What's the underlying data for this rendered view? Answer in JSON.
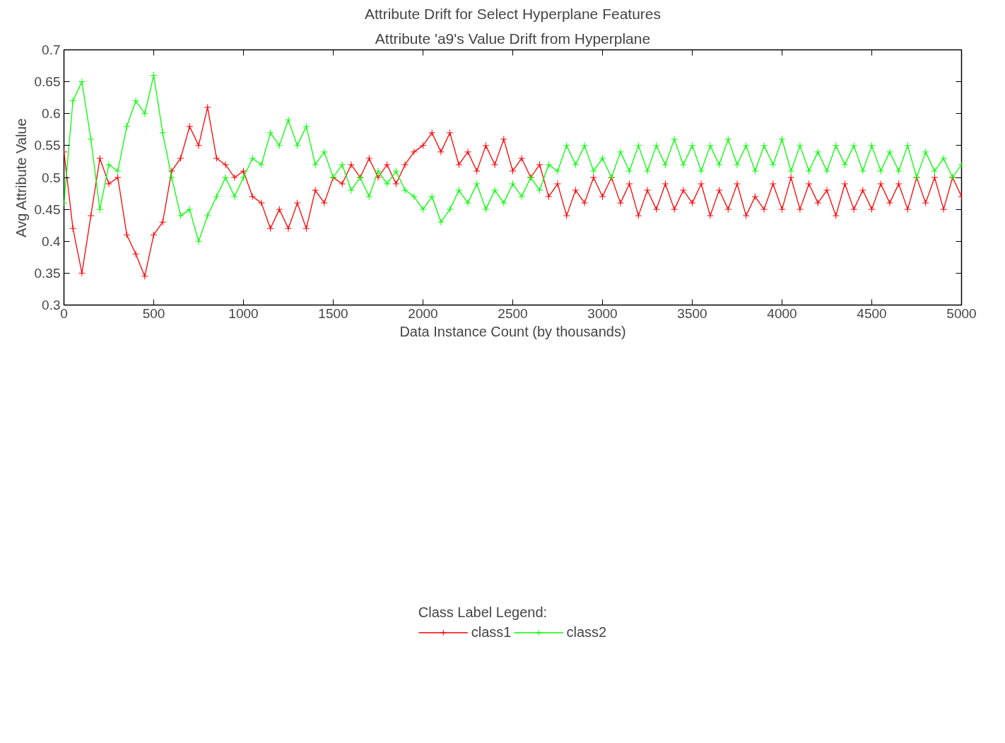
{
  "chart_data": {
    "type": "line",
    "title": "Attribute Drift for Select Hyperplane Features",
    "subtitle": "Attribute 'a9's Value Drift from Hyperplane",
    "xlabel": "Data Instance Count (by thousands)",
    "ylabel": "Avg Attribute Value",
    "legend_title": "Class Label Legend:",
    "x": [
      0,
      50,
      100,
      150,
      200,
      250,
      300,
      350,
      400,
      450,
      500,
      550,
      600,
      650,
      700,
      750,
      800,
      850,
      900,
      950,
      1000,
      1050,
      1100,
      1150,
      1200,
      1250,
      1300,
      1350,
      1400,
      1450,
      1500,
      1550,
      1600,
      1650,
      1700,
      1750,
      1800,
      1850,
      1900,
      1950,
      2000,
      2050,
      2100,
      2150,
      2200,
      2250,
      2300,
      2350,
      2400,
      2450,
      2500,
      2550,
      2600,
      2650,
      2700,
      2750,
      2800,
      2850,
      2900,
      2950,
      3000,
      3050,
      3100,
      3150,
      3200,
      3250,
      3300,
      3350,
      3400,
      3450,
      3500,
      3550,
      3600,
      3650,
      3700,
      3750,
      3800,
      3850,
      3900,
      3950,
      4000,
      4050,
      4100,
      4150,
      4200,
      4250,
      4300,
      4350,
      4400,
      4450,
      4500,
      4550,
      4600,
      4650,
      4700,
      4750,
      4800,
      4850,
      4900,
      4950,
      5000
    ],
    "series": [
      {
        "name": "class1",
        "color": "#ff0000",
        "values": [
          0.54,
          0.42,
          0.35,
          0.44,
          0.53,
          0.49,
          0.5,
          0.41,
          0.38,
          0.345,
          0.41,
          0.43,
          0.51,
          0.53,
          0.58,
          0.55,
          0.61,
          0.53,
          0.52,
          0.5,
          0.51,
          0.47,
          0.46,
          0.42,
          0.45,
          0.42,
          0.46,
          0.42,
          0.48,
          0.46,
          0.5,
          0.49,
          0.52,
          0.5,
          0.53,
          0.5,
          0.52,
          0.49,
          0.52,
          0.54,
          0.55,
          0.57,
          0.54,
          0.57,
          0.52,
          0.54,
          0.51,
          0.55,
          0.52,
          0.56,
          0.51,
          0.53,
          0.5,
          0.52,
          0.47,
          0.49,
          0.44,
          0.48,
          0.46,
          0.5,
          0.47,
          0.5,
          0.46,
          0.49,
          0.44,
          0.48,
          0.45,
          0.49,
          0.45,
          0.48,
          0.46,
          0.49,
          0.44,
          0.48,
          0.45,
          0.49,
          0.44,
          0.47,
          0.45,
          0.49,
          0.45,
          0.5,
          0.45,
          0.49,
          0.46,
          0.48,
          0.44,
          0.49,
          0.45,
          0.48,
          0.45,
          0.49,
          0.46,
          0.49,
          0.45,
          0.5,
          0.46,
          0.5,
          0.45,
          0.5,
          0.47
        ]
      },
      {
        "name": "class2",
        "color": "#00ff00",
        "values": [
          0.46,
          0.62,
          0.65,
          0.56,
          0.45,
          0.52,
          0.51,
          0.58,
          0.62,
          0.6,
          0.66,
          0.57,
          0.5,
          0.44,
          0.45,
          0.4,
          0.44,
          0.47,
          0.5,
          0.47,
          0.5,
          0.53,
          0.52,
          0.57,
          0.55,
          0.59,
          0.55,
          0.58,
          0.52,
          0.54,
          0.5,
          0.52,
          0.48,
          0.5,
          0.47,
          0.51,
          0.49,
          0.51,
          0.48,
          0.47,
          0.45,
          0.47,
          0.43,
          0.45,
          0.48,
          0.46,
          0.49,
          0.45,
          0.48,
          0.46,
          0.49,
          0.47,
          0.5,
          0.48,
          0.52,
          0.51,
          0.55,
          0.52,
          0.55,
          0.51,
          0.53,
          0.5,
          0.54,
          0.51,
          0.55,
          0.51,
          0.55,
          0.52,
          0.56,
          0.52,
          0.55,
          0.51,
          0.55,
          0.52,
          0.56,
          0.52,
          0.55,
          0.51,
          0.55,
          0.52,
          0.56,
          0.51,
          0.55,
          0.51,
          0.54,
          0.51,
          0.55,
          0.52,
          0.55,
          0.51,
          0.55,
          0.51,
          0.54,
          0.51,
          0.55,
          0.5,
          0.54,
          0.51,
          0.53,
          0.5,
          0.52
        ]
      }
    ],
    "xlim": [
      0,
      5000
    ],
    "xticks": [
      0,
      500,
      1000,
      1500,
      2000,
      2500,
      3000,
      3500,
      4000,
      4500,
      5000
    ],
    "ylim": [
      0.3,
      0.7
    ],
    "yticks": [
      0.3,
      0.35,
      0.4,
      0.45,
      0.5,
      0.55,
      0.6,
      0.65,
      0.7
    ],
    "grid": false,
    "legend": "bottom",
    "marker": "cross",
    "line_style": "solid"
  }
}
